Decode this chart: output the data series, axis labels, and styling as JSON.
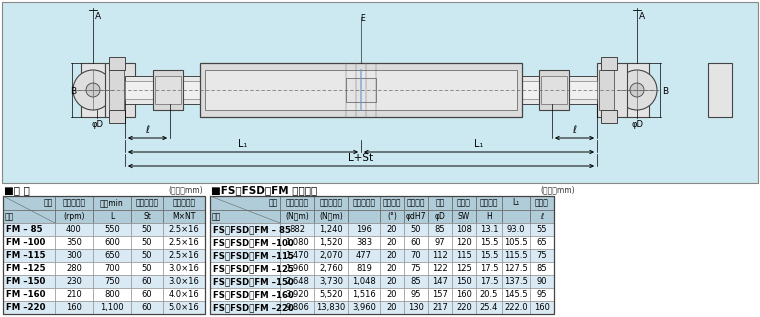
{
  "bg_color": "#cce8f0",
  "white": "#ffffff",
  "table_hdr_color": "#b0ccd8",
  "row_alt": "#daeaf4",
  "border_dark": "#444444",
  "border_med": "#888888",
  "title1": "■仕 様",
  "unit1": "(単位：mm)",
  "title2": "■FS・FSD・FM 共通仕様",
  "unit2": "(単位：mm)",
  "left_col_widths": [
    52,
    38,
    38,
    32,
    42
  ],
  "left_hdr1": [
    "記号",
    "許容回転数",
    "全長min",
    "スライド長",
    "スプライン"
  ],
  "left_hdr2": [
    "型式",
    "(rpm)",
    "L",
    "St",
    "M×NT"
  ],
  "left_rows": [
    [
      "FM – 85",
      "400",
      "550",
      "50",
      "2.5×16"
    ],
    [
      "FM –100",
      "350",
      "600",
      "50",
      "2.5×16"
    ],
    [
      "FM –115",
      "300",
      "650",
      "50",
      "2.5×16"
    ],
    [
      "FM –125",
      "280",
      "700",
      "50",
      "3.0×16"
    ],
    [
      "FM –150",
      "230",
      "750",
      "60",
      "3.0×16"
    ],
    [
      "FM –160",
      "210",
      "800",
      "60",
      "4.0×16"
    ],
    [
      "FM –220",
      "160",
      "1,100",
      "60",
      "5.0×16"
    ]
  ],
  "right_col_widths": [
    70,
    34,
    34,
    32,
    24,
    24,
    24,
    24,
    26,
    28,
    24
  ],
  "right_hdr1": [
    "記号",
    "許容トルク",
    "最大トルク",
    "クロス定格",
    "許容曲角",
    "最大軸径",
    "外径",
    "旋回径",
    "クロス厘",
    "L₁",
    "軸入長"
  ],
  "right_hdr2": [
    "型式",
    "(N・m)",
    "(N・m)",
    "",
    "(°)",
    "φdH7",
    "φD",
    "SW",
    "H",
    "",
    "ℓ"
  ],
  "right_rows": [
    [
      "FS・FSD・FM – 85",
      "882",
      "1,240",
      "196",
      "20",
      "50",
      "85",
      "108",
      "13.1",
      "93.0",
      "55"
    ],
    [
      "FS・FSD・FM –100",
      "1,080",
      "1,520",
      "383",
      "20",
      "60",
      "97",
      "120",
      "15.5",
      "105.5",
      "65"
    ],
    [
      "FS・FSD・FM –115",
      "1,470",
      "2,070",
      "477",
      "20",
      "70",
      "112",
      "115",
      "15.5",
      "115.5",
      "75"
    ],
    [
      "FS・FSD・FM –125",
      "1,960",
      "2,760",
      "819",
      "20",
      "75",
      "122",
      "125",
      "17.5",
      "127.5",
      "85"
    ],
    [
      "FS・FSD・FM –150",
      "2,648",
      "3,730",
      "1,048",
      "20",
      "85",
      "147",
      "150",
      "17.5",
      "137.5",
      "90"
    ],
    [
      "FS・FSD・FM –160",
      "3,920",
      "5,520",
      "1,516",
      "20",
      "95",
      "157",
      "160",
      "20.5",
      "145.5",
      "95"
    ],
    [
      "FS・FSD・FM –220",
      "9,806",
      "13,830",
      "3,960",
      "20",
      "130",
      "217",
      "220",
      "25.4",
      "222.0",
      "160"
    ]
  ]
}
